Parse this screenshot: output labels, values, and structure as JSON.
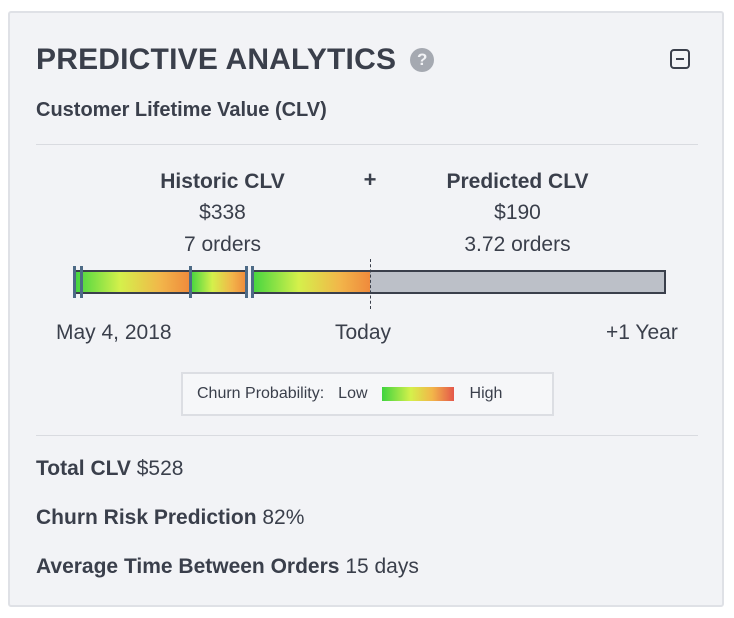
{
  "header": {
    "title": "PREDICTIVE ANALYTICS",
    "help_icon": "question-circle-icon",
    "collapse_icon": "minus-square-icon"
  },
  "subtitle": "Customer Lifetime Value (CLV)",
  "historic": {
    "label": "Historic CLV",
    "value": "$338",
    "orders": "7 orders"
  },
  "plus": "+",
  "predicted": {
    "label": "Predicted CLV",
    "value": "$190",
    "orders": "3.72 orders"
  },
  "timeline": {
    "start": "May 4, 2018",
    "today": "Today",
    "end": "+1 Year"
  },
  "legend": {
    "label": "Churn Probability:",
    "low": "Low",
    "high": "High"
  },
  "stats": {
    "total_label": "Total CLV",
    "total_value": "$528",
    "churn_label": "Churn Risk Prediction",
    "churn_value": "82%",
    "avg_label": "Average Time Between Orders",
    "avg_value": "15 days"
  },
  "colors": {
    "card_bg": "#f2f3f6",
    "text": "#3a3f4b",
    "predicted_bar": "#bcc0c8",
    "order_marker": "#4d6a86"
  }
}
